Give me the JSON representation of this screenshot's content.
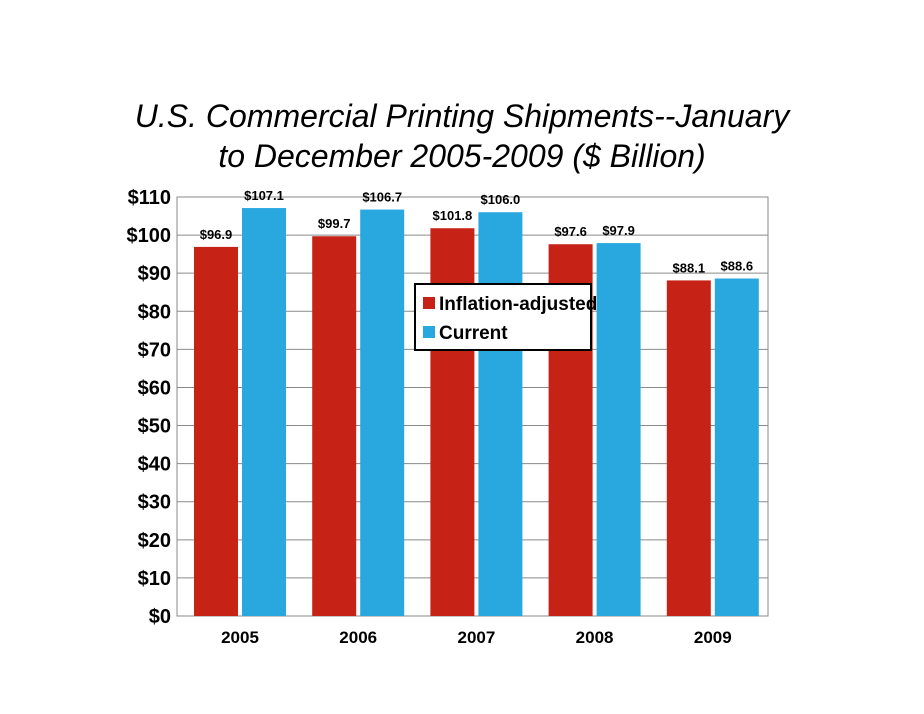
{
  "chart_data": {
    "type": "bar",
    "title_lines": [
      "U.S. Commercial Printing Shipments--January",
      "to December 2005-2009 ($ Billion)"
    ],
    "categories": [
      "2005",
      "2006",
      "2007",
      "2008",
      "2009"
    ],
    "series": [
      {
        "name": "Inflation-adjusted",
        "color": "#c62316",
        "values": [
          96.9,
          99.7,
          101.8,
          97.6,
          88.1
        ],
        "labels": [
          "$96.9",
          "$99.7",
          "$101.8",
          "$97.6",
          "$88.1"
        ]
      },
      {
        "name": "Current",
        "color": "#29a8e0",
        "values": [
          107.1,
          106.7,
          106.0,
          97.9,
          88.6
        ],
        "labels": [
          "$107.1",
          "$106.7",
          "$106.0",
          "$97.9",
          "$88.6"
        ]
      }
    ],
    "y_ticks": [
      0,
      10,
      20,
      30,
      40,
      50,
      60,
      70,
      80,
      90,
      100,
      110
    ],
    "y_tick_labels": [
      "$0",
      "$10",
      "$20",
      "$30",
      "$40",
      "$50",
      "$60",
      "$70",
      "$80",
      "$90",
      "$100",
      "$110"
    ],
    "ylim": [
      0,
      110
    ],
    "grid": true,
    "legend_position": "center"
  }
}
